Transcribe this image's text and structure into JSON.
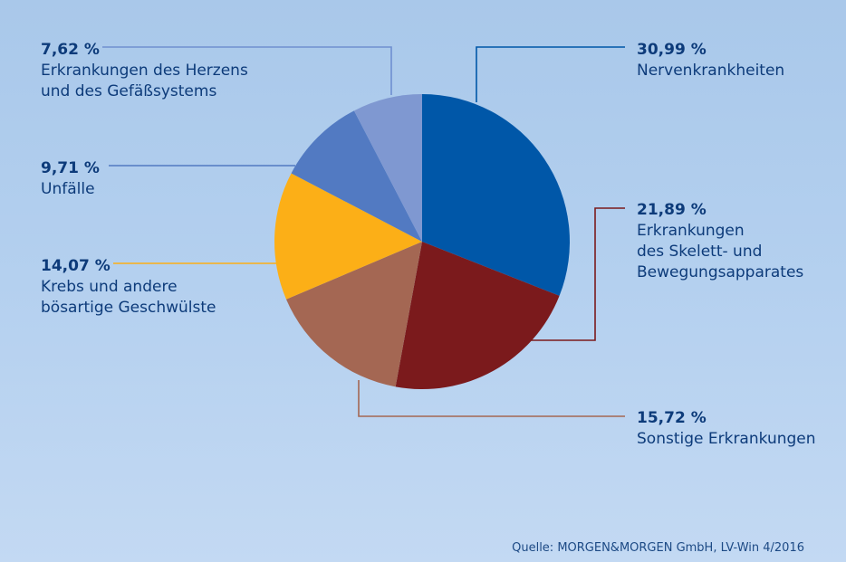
{
  "chart_data": {
    "type": "pie",
    "slices": [
      {
        "label": "Nervenkrankheiten",
        "pct_label": "30,99 %",
        "value": 30.99,
        "color": "#0057a8",
        "line_color": "#0057a8"
      },
      {
        "label": "Erkrankungen\ndes Skelett- und\nBewegungsapparates",
        "pct_label": "21,89 %",
        "value": 21.89,
        "color": "#7b1a1c",
        "line_color": "#7b1a1c"
      },
      {
        "label": "Sonstige Erkrankungen",
        "pct_label": "15,72 %",
        "value": 15.72,
        "color": "#a46753",
        "line_color": "#a46753"
      },
      {
        "label": "Krebs und andere\nbösartige Geschwülste",
        "pct_label": "14,07 %",
        "value": 14.07,
        "color": "#fcaf17",
        "line_color": "#fcaf17"
      },
      {
        "label": "Unfälle",
        "pct_label": "9,71 %",
        "value": 9.71,
        "color": "#527ac2",
        "line_color": "#527ac2"
      },
      {
        "label": "Erkrankungen des Herzens\nund des Gefäßsystems",
        "pct_label": "7,62 %",
        "value": 7.62,
        "color": "#7f98d1",
        "line_color": "#6f8fd0"
      }
    ],
    "source": "Quelle: MORGEN&MORGEN GmbH, LV-Win 4/2016"
  }
}
